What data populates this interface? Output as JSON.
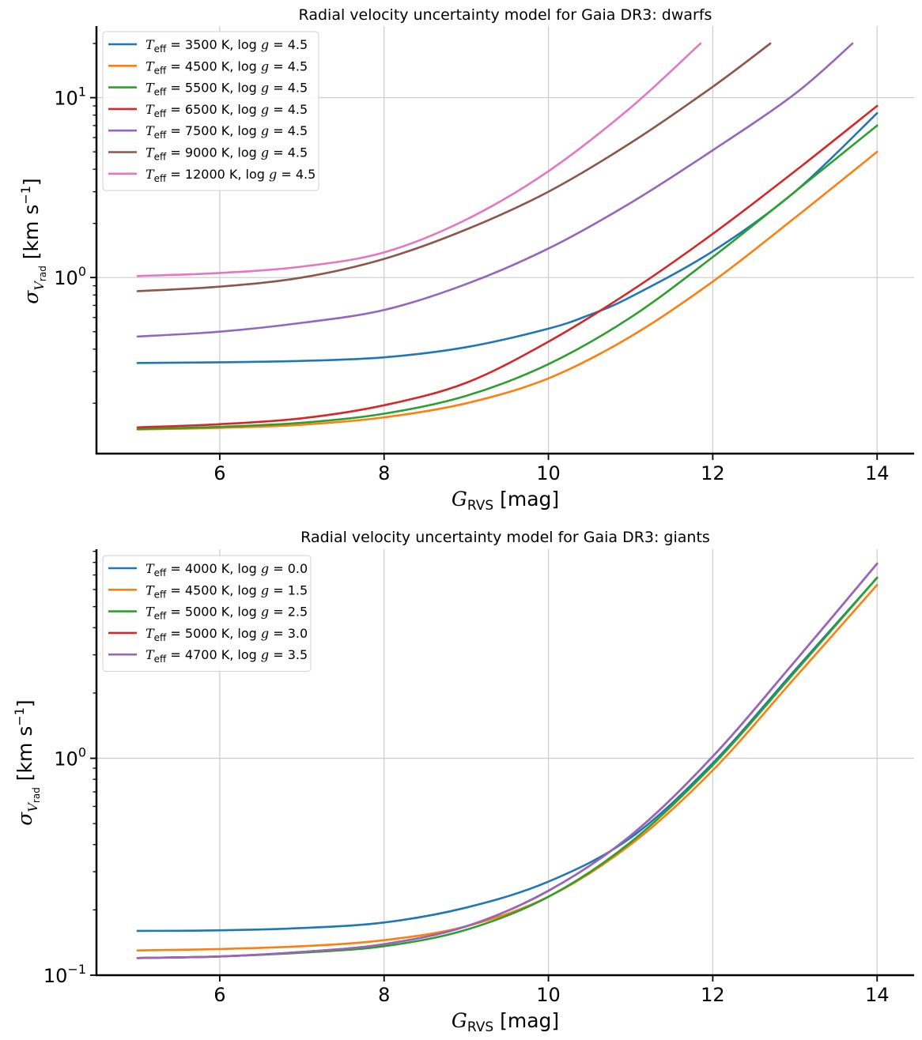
{
  "chart_data": [
    {
      "type": "line",
      "title": "Radial velocity uncertainty model for Gaia DR3: dwarfs",
      "xlabel": "G_RVS [mag]",
      "ylabel": "σ_V_rad [km s^-1]",
      "x_scale": "linear",
      "y_scale": "log",
      "xlim": [
        4.5,
        14.45
      ],
      "ylim": [
        0.105,
        25
      ],
      "xticks": [
        6,
        8,
        10,
        12,
        14
      ],
      "xtick_labels": [
        "6",
        "8",
        "10",
        "12",
        "14"
      ],
      "ytick_labels": [
        "10^0",
        "10^1"
      ],
      "grid": true,
      "legend_position": "upper-left",
      "series": [
        {
          "name": "T_eff = 3500 K, log g = 4.5",
          "color": "#1f77b4",
          "x": [
            5,
            6,
            7,
            8,
            9,
            10,
            10.5,
            11,
            12,
            13,
            14
          ],
          "y": [
            0.335,
            0.338,
            0.344,
            0.36,
            0.41,
            0.52,
            0.62,
            0.78,
            1.4,
            3.0,
            8.2
          ]
        },
        {
          "name": "T_eff = 4500 K, log g = 4.5",
          "color": "#ff7f0e",
          "x": [
            5,
            6,
            7,
            8,
            9,
            10,
            11,
            12,
            13,
            14
          ],
          "y": [
            0.143,
            0.146,
            0.152,
            0.167,
            0.2,
            0.275,
            0.47,
            0.95,
            2.15,
            5.0
          ]
        },
        {
          "name": "T_eff = 5500 K, log g = 4.5",
          "color": "#2ca02c",
          "x": [
            5,
            6,
            7,
            8,
            9,
            10,
            11,
            12,
            13,
            14
          ],
          "y": [
            0.144,
            0.148,
            0.156,
            0.175,
            0.22,
            0.33,
            0.6,
            1.3,
            3.0,
            7.0
          ]
        },
        {
          "name": "T_eff = 6500 K, log g = 4.5",
          "color": "#d62728",
          "x": [
            5,
            6,
            7,
            8,
            9,
            10,
            11,
            12,
            13,
            14
          ],
          "y": [
            0.147,
            0.153,
            0.165,
            0.195,
            0.26,
            0.44,
            0.84,
            1.75,
            3.9,
            9.0
          ]
        },
        {
          "name": "T_eff = 7500 K, log g = 4.5",
          "color": "#9467bd",
          "x": [
            5,
            6,
            7,
            8,
            9,
            10,
            11,
            12,
            13,
            13.7
          ],
          "y": [
            0.47,
            0.5,
            0.56,
            0.66,
            0.92,
            1.45,
            2.6,
            5.1,
            10.5,
            20.0
          ]
        },
        {
          "name": "T_eff = 9000 K, log g = 4.5",
          "color": "#8c564b",
          "x": [
            5,
            6,
            7,
            8,
            9,
            10,
            11,
            12,
            12.7
          ],
          "y": [
            0.84,
            0.89,
            1.0,
            1.27,
            1.85,
            3.0,
            5.6,
            11.5,
            20.0
          ]
        },
        {
          "name": "T_eff = 12000 K, log g = 4.5",
          "color": "#e377c2",
          "x": [
            5,
            6,
            7,
            8,
            9,
            10,
            11,
            11.85
          ],
          "y": [
            1.02,
            1.06,
            1.15,
            1.38,
            2.1,
            3.9,
            8.8,
            20.0
          ]
        }
      ]
    },
    {
      "type": "line",
      "title": "Radial velocity uncertainty model for Gaia DR3: giants",
      "xlabel": "G_RVS [mag]",
      "ylabel": "σ_V_rad [km s^-1]",
      "x_scale": "linear",
      "y_scale": "log",
      "xlim": [
        4.5,
        14.45
      ],
      "ylim": [
        0.1,
        9.2
      ],
      "xticks": [
        6,
        8,
        10,
        12,
        14
      ],
      "xtick_labels": [
        "6",
        "8",
        "10",
        "12",
        "14"
      ],
      "ytick_labels": [
        "10^-1",
        "10^0"
      ],
      "grid": true,
      "legend_position": "upper-left",
      "series": [
        {
          "name": "T_eff = 4000 K, log g = 0.0",
          "color": "#1f77b4",
          "x": [
            5,
            6,
            7,
            8,
            9,
            10,
            11,
            12,
            13,
            14
          ],
          "y": [
            0.16,
            0.161,
            0.165,
            0.175,
            0.205,
            0.27,
            0.43,
            0.95,
            2.55,
            6.8
          ]
        },
        {
          "name": "T_eff = 4500 K, log g = 1.5",
          "color": "#ff7f0e",
          "x": [
            5,
            6,
            7,
            8,
            9,
            10,
            11,
            12,
            13,
            14
          ],
          "y": [
            0.13,
            0.132,
            0.136,
            0.145,
            0.168,
            0.23,
            0.4,
            0.88,
            2.35,
            6.3
          ]
        },
        {
          "name": "T_eff = 5000 K, log g = 2.5",
          "color": "#2ca02c",
          "x": [
            5,
            6,
            7,
            8,
            9,
            10,
            11,
            12,
            13,
            14
          ],
          "y": [
            0.12,
            0.122,
            0.127,
            0.136,
            0.162,
            0.23,
            0.41,
            0.93,
            2.5,
            6.8
          ]
        },
        {
          "name": "T_eff = 5000 K, log g = 3.0",
          "color": "#d62728",
          "x": [
            5,
            6,
            7,
            8,
            9,
            10,
            11,
            12,
            13,
            14
          ],
          "y": [
            0.12,
            0.122,
            0.128,
            0.139,
            0.168,
            0.245,
            0.44,
            1.02,
            2.8,
            7.9
          ]
        },
        {
          "name": "T_eff = 4700 K, log g = 3.5",
          "color": "#9467bd",
          "x": [
            5,
            6,
            7,
            8,
            9,
            10,
            11,
            12,
            13,
            14
          ],
          "y": [
            0.12,
            0.122,
            0.128,
            0.139,
            0.168,
            0.245,
            0.44,
            1.02,
            2.8,
            7.9
          ]
        }
      ]
    }
  ]
}
